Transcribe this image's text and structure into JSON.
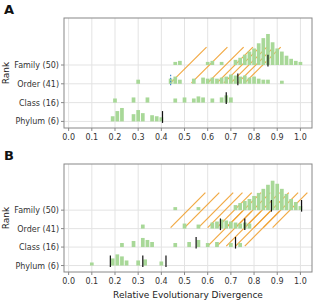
{
  "chart_data": [
    {
      "type": "bar",
      "title": "A",
      "y_label": "Rank",
      "grid": true,
      "xlim": [
        -0.02,
        1.05
      ],
      "ylim": [
        -0.35,
        5.5
      ],
      "xticks": [
        {
          "value": 0.0,
          "label": "0.0"
        },
        0.1,
        0.2,
        0.3,
        0.4,
        0.5,
        0.6,
        0.7,
        0.8,
        0.9,
        {
          "value": 1.0,
          "label": "1.0"
        }
      ],
      "yticks": [
        {
          "value": 0,
          "label": "Phylum (6)"
        },
        {
          "value": 1,
          "label": "Class (16)"
        },
        {
          "value": 2,
          "label": "Order (41)"
        },
        {
          "value": 3,
          "label": "Family (50)"
        }
      ],
      "series": [
        {
          "type": "bar",
          "y": 0,
          "color": "#a8d898",
          "x": [
            0.19,
            0.21,
            0.23,
            0.28,
            0.3,
            0.32,
            0.36,
            0.38,
            0.4
          ],
          "values": [
            0.5,
            1.0,
            1.3,
            0.7,
            1.1,
            0.8,
            0.6,
            0.5,
            0.4
          ]
        },
        {
          "type": "bar",
          "y": 1,
          "color": "#a8d898",
          "x": [
            0.2,
            0.28,
            0.34,
            0.46,
            0.5,
            0.54,
            0.56,
            0.58,
            0.62,
            0.66,
            0.68,
            0.7
          ],
          "values": [
            0.4,
            0.5,
            0.5,
            0.4,
            0.5,
            0.4,
            0.6,
            0.5,
            0.4,
            0.5,
            0.7,
            0.5
          ]
        },
        {
          "type": "bar",
          "y": 2,
          "color": "#a8d898",
          "x": [
            0.3,
            0.44,
            0.46,
            0.48,
            0.54,
            0.58,
            0.6,
            0.62,
            0.64,
            0.66,
            0.68,
            0.7,
            0.72,
            0.74,
            0.76,
            0.78,
            0.8,
            0.82,
            0.84,
            0.86,
            0.92
          ],
          "values": [
            0.4,
            0.5,
            0.7,
            0.4,
            0.5,
            0.6,
            0.5,
            0.6,
            0.5,
            0.6,
            0.7,
            0.9,
            0.8,
            0.7,
            0.8,
            0.6,
            0.7,
            0.5,
            0.4,
            0.4,
            0.3
          ]
        },
        {
          "type": "bar",
          "y": 3,
          "color": "#a8d898",
          "x": [
            0.46,
            0.48,
            0.6,
            0.62,
            0.66,
            0.72,
            0.74,
            0.76,
            0.78,
            0.8,
            0.82,
            0.84,
            0.86,
            0.88,
            0.9,
            0.92,
            0.94,
            0.96,
            0.98,
            1.0
          ],
          "values": [
            0.3,
            0.4,
            0.3,
            0.4,
            0.3,
            0.5,
            0.7,
            1.0,
            1.3,
            1.6,
            2.1,
            2.6,
            3.0,
            2.2,
            1.6,
            1.3,
            0.9,
            0.6,
            0.4,
            0.3
          ]
        },
        {
          "type": "vline",
          "y": 0,
          "color": "#111111",
          "x": [
            0.405
          ]
        },
        {
          "type": "vline",
          "y": 1,
          "color": "#111111",
          "x": [
            0.68
          ]
        },
        {
          "type": "vline",
          "y": 2,
          "color": "#111111",
          "x": [
            0.73
          ]
        },
        {
          "type": "vline",
          "y": 3,
          "color": "#111111",
          "x": [
            0.86
          ]
        },
        {
          "type": "vline",
          "y": 2,
          "color": "#4488cc",
          "line_style": "dotted",
          "x": [
            0.44
          ]
        },
        {
          "type": "line",
          "color": "#f0a030",
          "x": [
            0.44,
            0.595
          ],
          "values": [
            2.05,
            3.95
          ]
        },
        {
          "type": "line",
          "color": "#f0a030",
          "x": [
            0.53,
            0.685
          ],
          "values": [
            2.05,
            3.95
          ]
        },
        {
          "type": "line",
          "color": "#f0a030",
          "x": [
            0.6,
            0.755
          ],
          "values": [
            2.05,
            3.95
          ]
        },
        {
          "type": "line",
          "color": "#f0a030",
          "x": [
            0.64,
            0.795
          ],
          "values": [
            2.05,
            3.95
          ]
        },
        {
          "type": "line",
          "color": "#f0a030",
          "x": [
            0.67,
            0.825
          ],
          "values": [
            2.05,
            3.95
          ]
        },
        {
          "type": "line",
          "color": "#f0a030",
          "x": [
            0.7,
            0.855
          ],
          "values": [
            2.05,
            3.95
          ]
        },
        {
          "type": "line",
          "color": "#f0a030",
          "x": [
            0.73,
            0.885
          ],
          "values": [
            2.05,
            3.95
          ]
        },
        {
          "type": "line",
          "color": "#f0a030",
          "x": [
            0.76,
            0.915
          ],
          "values": [
            2.05,
            3.95
          ]
        }
      ]
    },
    {
      "type": "bar",
      "title": "B",
      "x_label": "Relative Evolutionary Divergence",
      "y_label": "Rank",
      "grid": true,
      "xlim": [
        -0.02,
        1.05
      ],
      "ylim": [
        -0.35,
        5.5
      ],
      "xticks": [
        {
          "value": 0.0,
          "label": "0.0"
        },
        0.1,
        0.2,
        0.3,
        0.4,
        0.5,
        0.6,
        0.7,
        0.8,
        0.9,
        {
          "value": 1.0,
          "label": "1.0"
        }
      ],
      "yticks": [
        {
          "value": 0,
          "label": "Phylum (6)"
        },
        {
          "value": 1,
          "label": "Class (16)"
        },
        {
          "value": 2,
          "label": "Order (41)"
        },
        {
          "value": 3,
          "label": "Family (50)"
        }
      ],
      "series": [
        {
          "type": "bar",
          "y": 0,
          "color": "#a8d898",
          "x": [
            0.1,
            0.19,
            0.21,
            0.23,
            0.25,
            0.3,
            0.33,
            0.4
          ],
          "values": [
            0.3,
            0.7,
            1.1,
            0.9,
            0.5,
            0.5,
            0.6,
            0.4
          ]
        },
        {
          "type": "bar",
          "y": 1,
          "color": "#a8d898",
          "x": [
            0.23,
            0.28,
            0.32,
            0.34,
            0.36,
            0.46,
            0.52,
            0.56,
            0.6,
            0.64,
            0.7,
            0.74
          ],
          "values": [
            0.4,
            0.6,
            0.9,
            0.7,
            0.5,
            0.4,
            0.5,
            0.7,
            0.4,
            0.5,
            0.4,
            0.4
          ]
        },
        {
          "type": "bar",
          "y": 2,
          "color": "#a8d898",
          "x": [
            0.32,
            0.5,
            0.56,
            0.62,
            0.64,
            0.66,
            0.68,
            0.7,
            0.72,
            0.74,
            0.76,
            0.78
          ],
          "values": [
            0.4,
            0.5,
            0.4,
            0.6,
            0.7,
            0.9,
            0.8,
            0.7,
            0.6,
            0.5,
            0.6,
            0.5
          ]
        },
        {
          "type": "bar",
          "y": 3,
          "color": "#a8d898",
          "x": [
            0.46,
            0.56,
            0.72,
            0.74,
            0.76,
            0.78,
            0.8,
            0.82,
            0.84,
            0.86,
            0.88,
            0.9,
            0.92,
            0.94,
            0.96,
            0.98,
            1.0
          ],
          "values": [
            0.3,
            0.3,
            0.5,
            0.7,
            0.9,
            1.1,
            1.4,
            1.7,
            2.1,
            2.5,
            2.9,
            2.6,
            2.1,
            1.6,
            1.1,
            0.8,
            0.4
          ]
        },
        {
          "type": "vline",
          "y": 0,
          "color": "#111111",
          "x": [
            0.18,
            0.32,
            0.42
          ]
        },
        {
          "type": "vline",
          "y": 1,
          "color": "#111111",
          "x": [
            0.55,
            0.72
          ]
        },
        {
          "type": "vline",
          "y": 2,
          "color": "#111111",
          "x": [
            0.655,
            0.76
          ]
        },
        {
          "type": "vline",
          "y": 3,
          "color": "#111111",
          "x": [
            0.875,
            1.005
          ]
        },
        {
          "type": "line",
          "color": "#f0a030",
          "x": [
            0.44,
            0.59
          ],
          "values": [
            2.05,
            3.95
          ]
        },
        {
          "type": "line",
          "color": "#f0a030",
          "x": [
            0.5,
            0.65
          ],
          "values": [
            2.05,
            3.95
          ]
        },
        {
          "type": "line",
          "color": "#f0a030",
          "x": [
            0.56,
            0.71
          ],
          "values": [
            2.05,
            3.95
          ]
        },
        {
          "type": "line",
          "color": "#f0a030",
          "x": [
            0.6,
            0.75
          ],
          "values": [
            2.05,
            3.95
          ]
        },
        {
          "type": "line",
          "color": "#f0a030",
          "x": [
            0.64,
            0.79
          ],
          "values": [
            2.05,
            3.95
          ]
        },
        {
          "type": "line",
          "color": "#f0a030",
          "x": [
            0.68,
            0.83
          ],
          "values": [
            2.05,
            3.95
          ]
        },
        {
          "type": "line",
          "color": "#f0a030",
          "x": [
            0.72,
            0.87
          ],
          "values": [
            2.05,
            3.95
          ]
        },
        {
          "type": "line",
          "color": "#f0a030",
          "x": [
            0.76,
            0.91
          ],
          "values": [
            2.05,
            3.95
          ]
        },
        {
          "type": "line",
          "color": "#f0a030",
          "x": [
            0.8,
            0.95
          ],
          "values": [
            2.05,
            3.95
          ]
        },
        {
          "type": "line",
          "color": "#f0a030",
          "x": [
            0.84,
            0.99
          ],
          "values": [
            2.05,
            3.95
          ]
        },
        {
          "type": "line",
          "color": "#f0a030",
          "x": [
            0.88,
            1.03
          ],
          "values": [
            2.05,
            3.95
          ]
        },
        {
          "type": "line",
          "color": "#f0a030",
          "x": [
            0.6,
            0.75
          ],
          "values": [
            1.05,
            2.95
          ]
        },
        {
          "type": "line",
          "color": "#f0a030",
          "x": [
            0.64,
            0.79
          ],
          "values": [
            1.05,
            2.95
          ]
        },
        {
          "type": "line",
          "color": "#f0a030",
          "x": [
            0.68,
            0.83
          ],
          "values": [
            1.05,
            2.95
          ]
        },
        {
          "type": "line",
          "color": "#f0a030",
          "x": [
            0.72,
            0.87
          ],
          "values": [
            1.05,
            2.95
          ]
        },
        {
          "type": "line",
          "color": "#f0a030",
          "x": [
            0.76,
            0.91
          ],
          "values": [
            1.05,
            2.95
          ]
        }
      ]
    }
  ]
}
